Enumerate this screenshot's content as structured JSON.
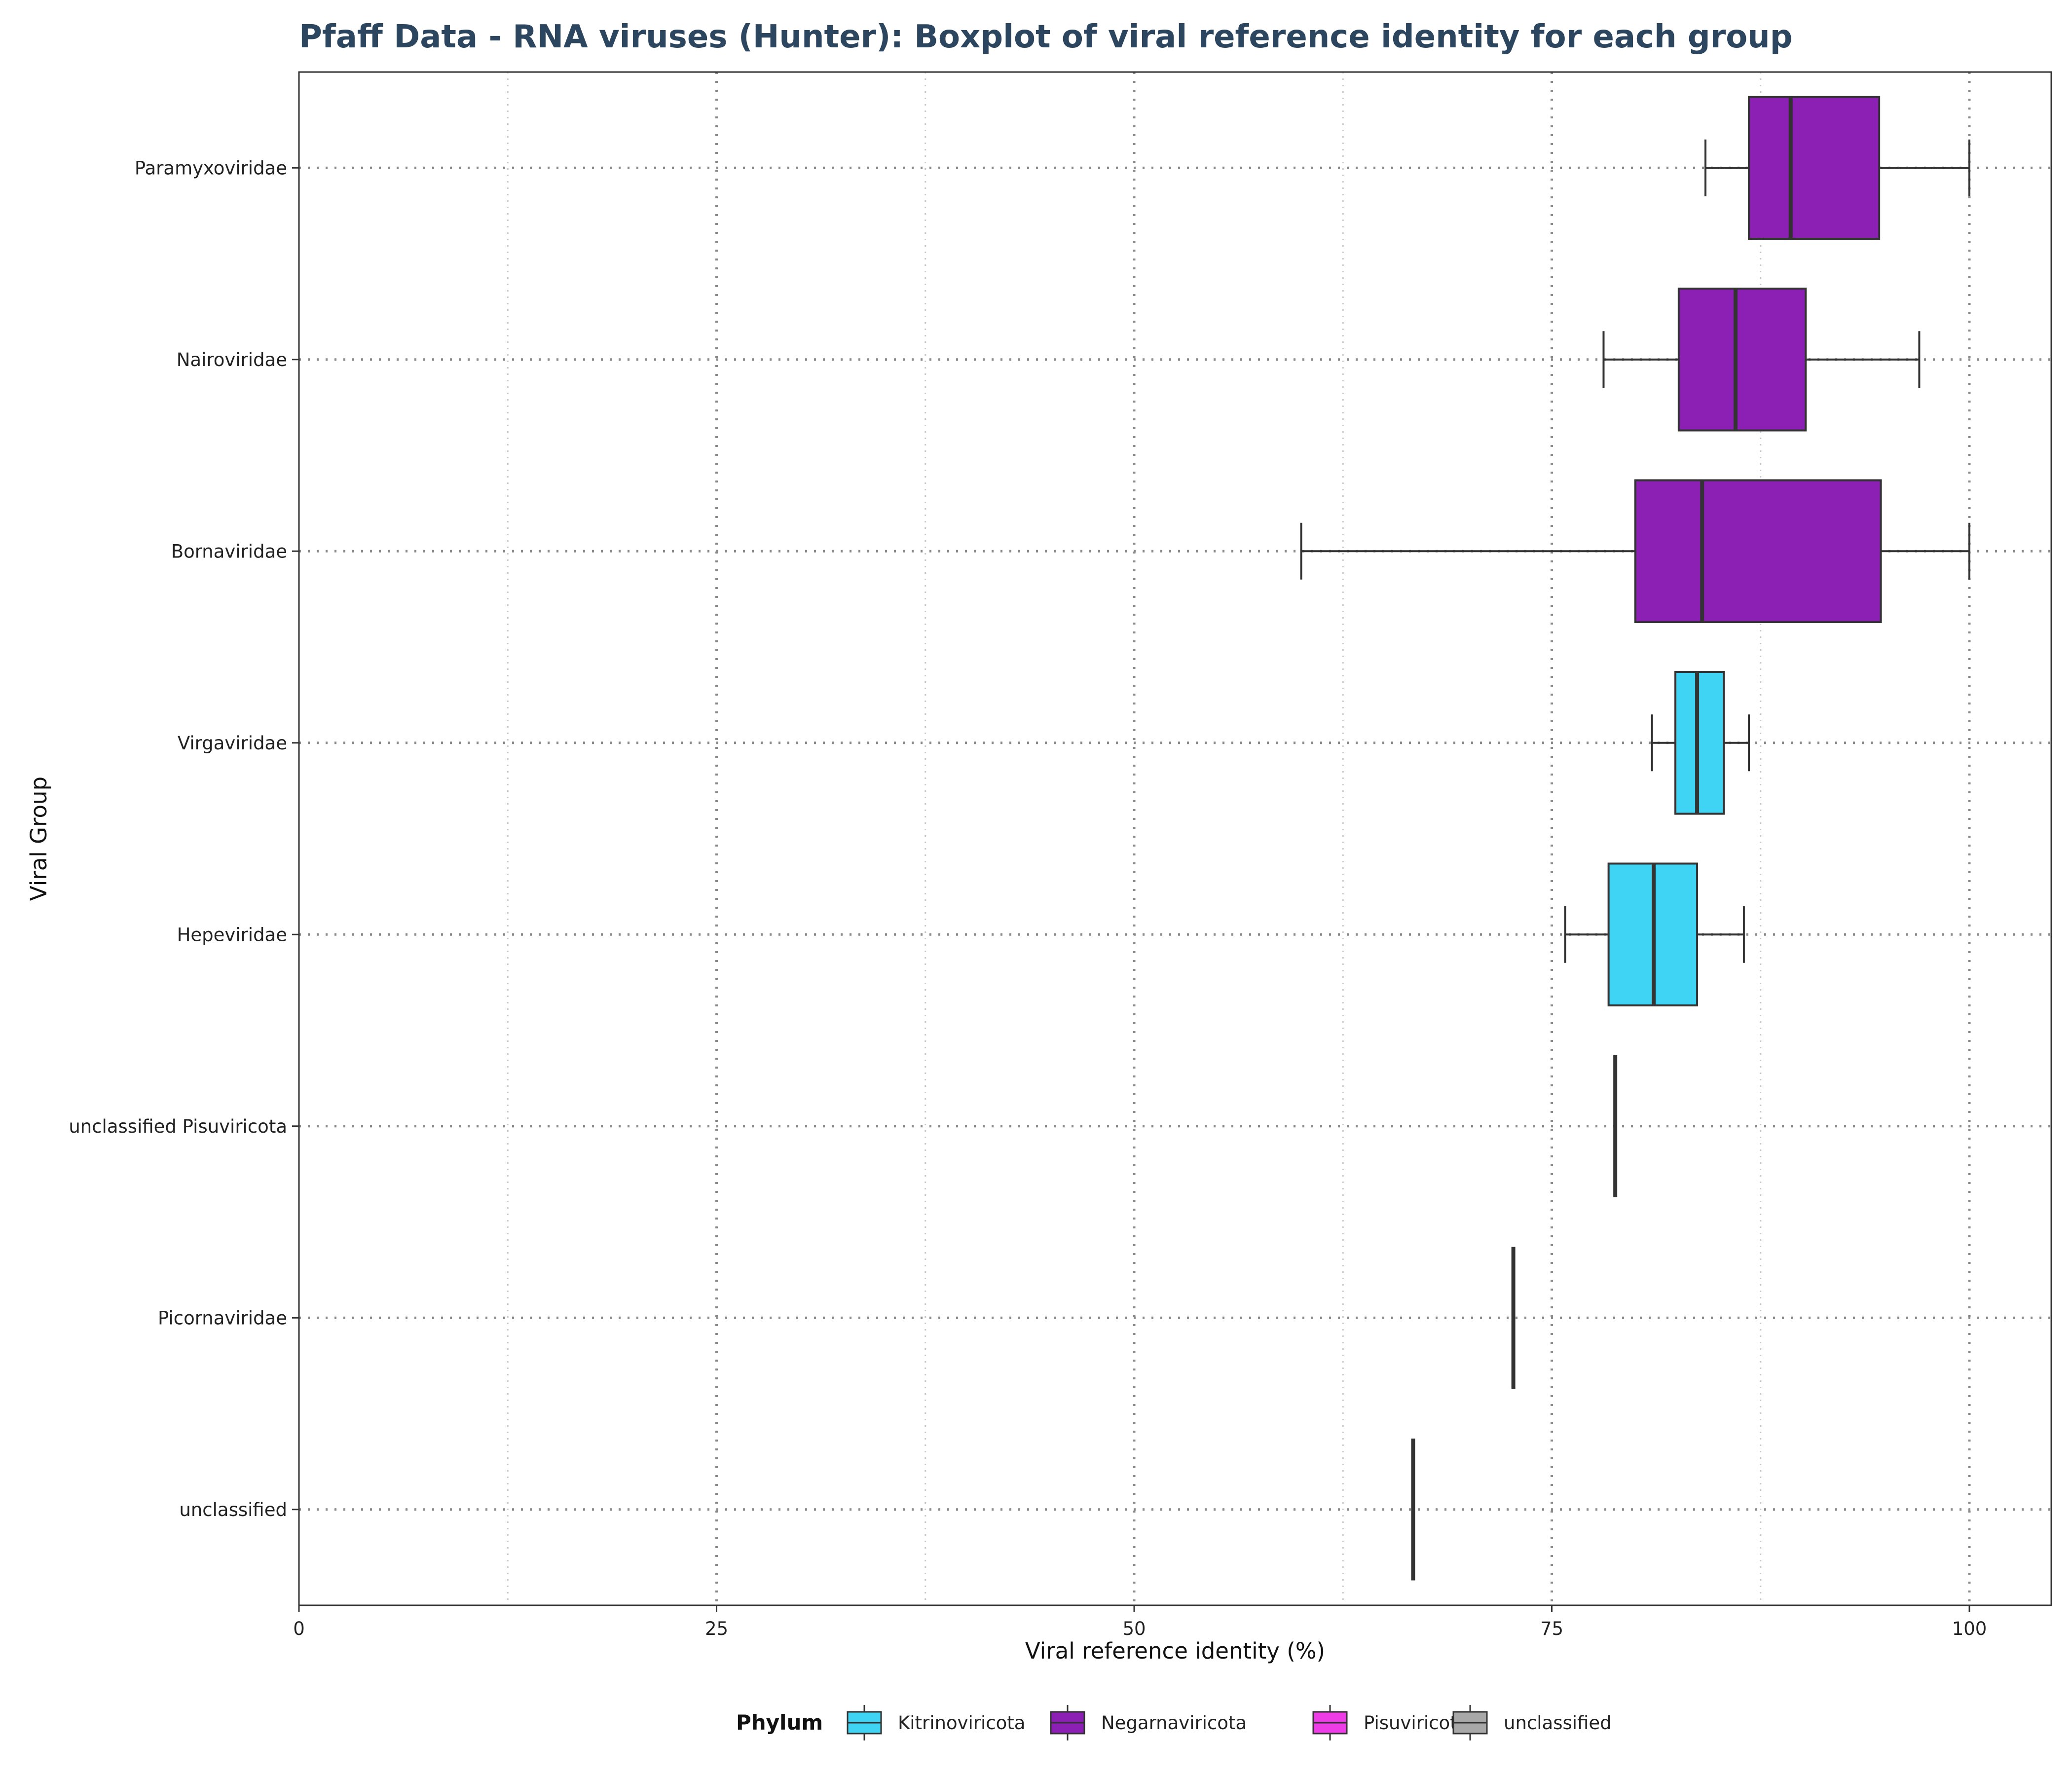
{
  "chart_data": {
    "type": "boxplot",
    "orientation": "horizontal",
    "title": "Pfaff Data - RNA viruses (Hunter): Boxplot of viral reference identity for each group",
    "xlabel": "Viral reference identity (%)",
    "ylabel": "Viral Group",
    "xlim": [
      0,
      105
    ],
    "xticks": [
      0,
      25,
      50,
      75,
      100
    ],
    "grid": true,
    "legend_position": "bottom",
    "legend_title": "Phylum",
    "legend": [
      {
        "name": "Kitrinoviricota",
        "color": "#40d4f4"
      },
      {
        "name": "Negarnaviricota",
        "color": "#8c1fb4"
      },
      {
        "name": "Pisuviricota",
        "color": "#ee3ce6"
      },
      {
        "name": "unclassified",
        "color": "#a8a8a8"
      }
    ],
    "groups": [
      {
        "label": "Paramyxoviridae",
        "phylum": "Negarnaviricota",
        "whisker_low": 84.2,
        "q1": 86.8,
        "median": 89.3,
        "q3": 94.6,
        "whisker_high": 100
      },
      {
        "label": "Nairoviridae",
        "phylum": "Negarnaviricota",
        "whisker_low": 78.1,
        "q1": 82.6,
        "median": 86,
        "q3": 90.2,
        "whisker_high": 97
      },
      {
        "label": "Bornaviridae",
        "phylum": "Negarnaviricota",
        "whisker_low": 60,
        "q1": 80,
        "median": 84,
        "q3": 94.7,
        "whisker_high": 100
      },
      {
        "label": "Virgaviridae",
        "phylum": "Kitrinoviricota",
        "whisker_low": 81,
        "q1": 82.4,
        "median": 83.7,
        "q3": 85.3,
        "whisker_high": 86.8
      },
      {
        "label": "Hepeviridae",
        "phylum": "Kitrinoviricota",
        "whisker_low": 75.8,
        "q1": 78.4,
        "median": 81.1,
        "q3": 83.7,
        "whisker_high": 86.5
      },
      {
        "label": "unclassified Pisuviricota",
        "phylum": "Pisuviricota",
        "whisker_low": 78.8,
        "q1": 78.8,
        "median": 78.8,
        "q3": 78.8,
        "whisker_high": 78.8
      },
      {
        "label": "Picornaviridae",
        "phylum": "Pisuviricota",
        "whisker_low": 72.7,
        "q1": 72.7,
        "median": 72.7,
        "q3": 72.7,
        "whisker_high": 72.7
      },
      {
        "label": "unclassified",
        "phylum": "unclassified",
        "whisker_low": 66.7,
        "q1": 66.7,
        "median": 66.7,
        "q3": 66.7,
        "whisker_high": 66.7
      }
    ]
  }
}
